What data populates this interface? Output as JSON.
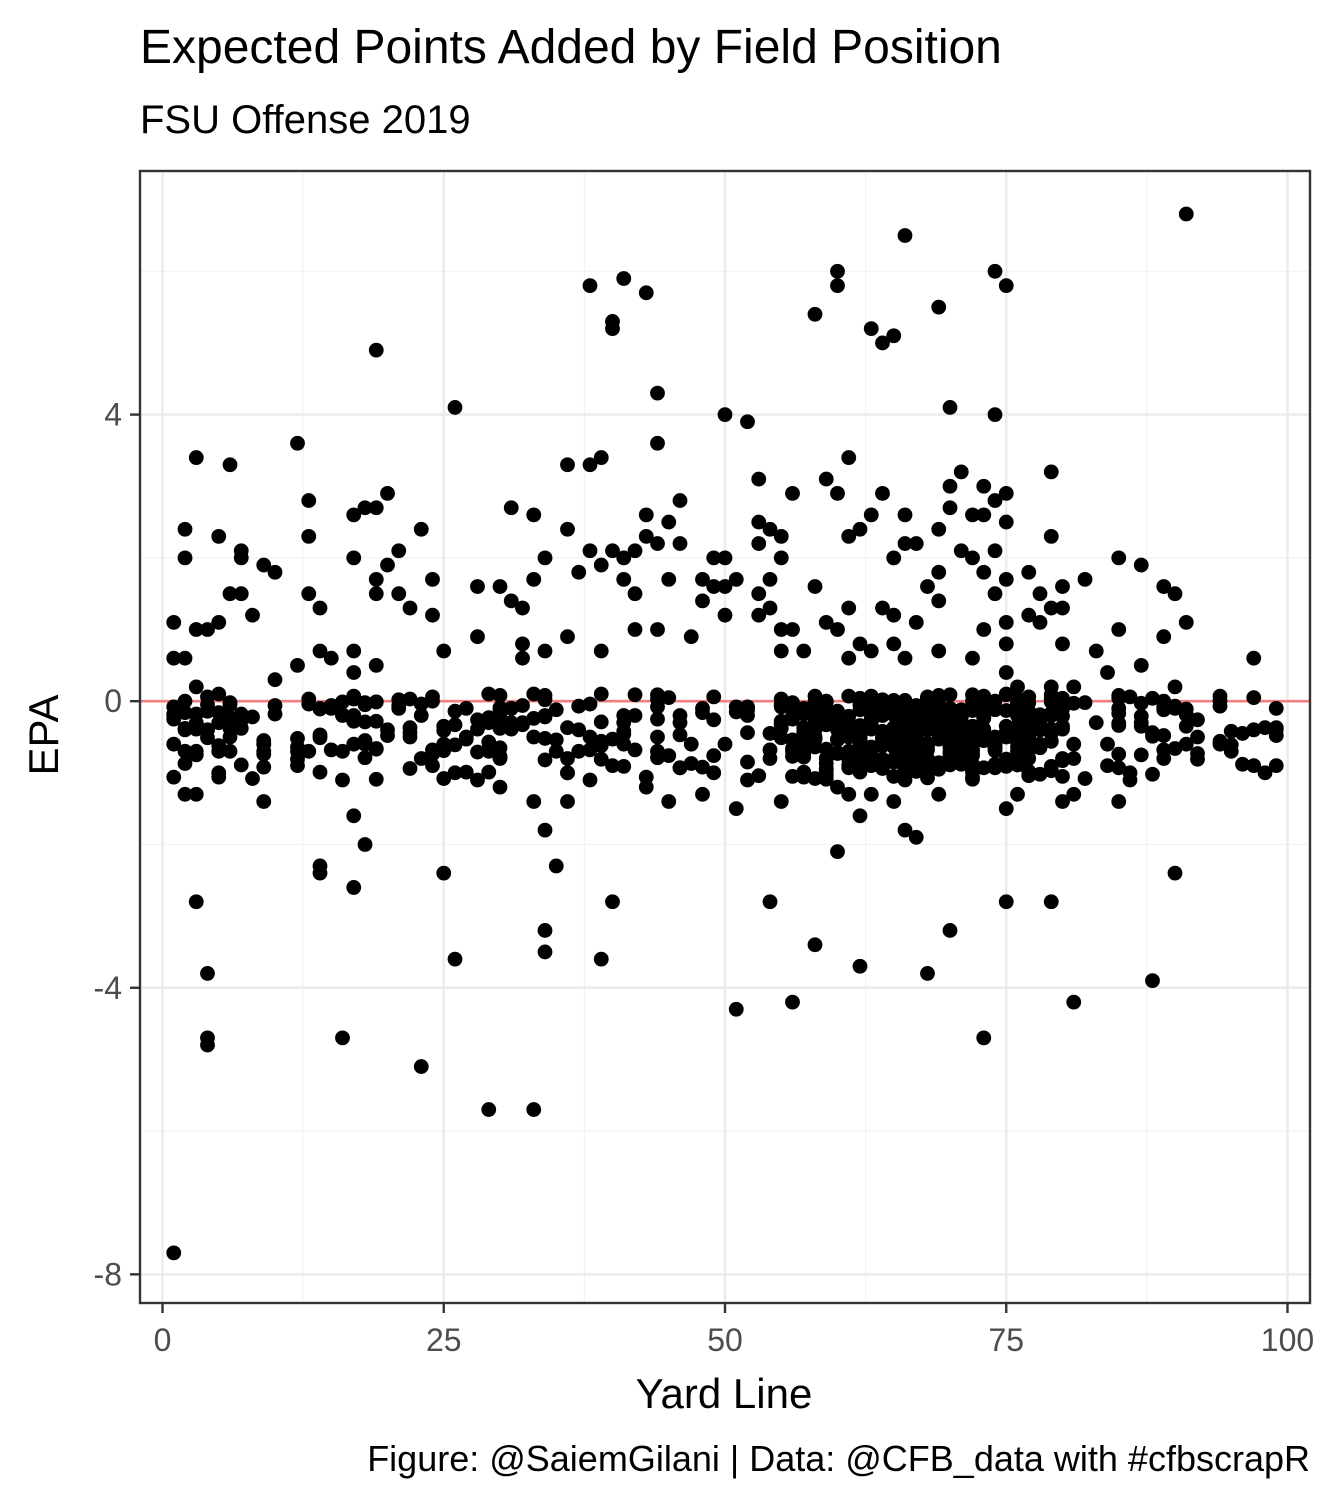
{
  "chart_data": {
    "type": "scatter",
    "title": "Expected Points Added by Field Position",
    "subtitle": "FSU Offense 2019",
    "xlabel": "Yard Line",
    "ylabel": "EPA",
    "caption": "Figure: @SaiemGilani | Data: @CFB_data with #cfbscrapR",
    "xlim": [
      -2,
      102
    ],
    "ylim": [
      -8.4,
      7.4
    ],
    "x_ticks": [
      0,
      25,
      50,
      75,
      100
    ],
    "y_ticks": [
      -8,
      -4,
      0,
      4
    ],
    "x_tick_labels": [
      "0",
      "25",
      "50",
      "75",
      "100"
    ],
    "y_tick_labels": [
      "-8",
      "-4",
      "0",
      "4"
    ],
    "grid": true,
    "reference_line": {
      "y": 0,
      "color": "#f08080"
    },
    "point_color": "#000000",
    "points": [
      [
        1,
        -7.7
      ],
      [
        1,
        1.1
      ],
      [
        1,
        0.6
      ],
      [
        1,
        -0.2
      ],
      [
        1,
        -0.6
      ],
      [
        2,
        2.4
      ],
      [
        2,
        2.0
      ],
      [
        2,
        0.6
      ],
      [
        2,
        0.0
      ],
      [
        2,
        -0.4
      ],
      [
        2,
        -0.7
      ],
      [
        2,
        -1.3
      ],
      [
        3,
        3.4
      ],
      [
        3,
        1.0
      ],
      [
        3,
        0.2
      ],
      [
        3,
        -0.7
      ],
      [
        3,
        -1.3
      ],
      [
        3,
        -2.8
      ],
      [
        4,
        -3.8
      ],
      [
        4,
        -4.7
      ],
      [
        4,
        -4.8
      ],
      [
        4,
        1.0
      ],
      [
        4,
        -0.4
      ],
      [
        5,
        2.3
      ],
      [
        5,
        1.1
      ],
      [
        5,
        0.1
      ],
      [
        5,
        -0.3
      ],
      [
        5,
        -0.7
      ],
      [
        5,
        -1.0
      ],
      [
        6,
        3.3
      ],
      [
        6,
        1.5
      ],
      [
        6,
        -0.5
      ],
      [
        6,
        -0.7
      ],
      [
        7,
        2.1
      ],
      [
        7,
        2.0
      ],
      [
        7,
        1.5
      ],
      [
        7,
        -0.2
      ],
      [
        8,
        1.2
      ],
      [
        9,
        1.9
      ],
      [
        9,
        -0.7
      ],
      [
        9,
        -1.4
      ],
      [
        10,
        1.8
      ],
      [
        10,
        0.3
      ],
      [
        12,
        3.6
      ],
      [
        12,
        0.5
      ],
      [
        12,
        -0.7
      ],
      [
        12,
        -0.9
      ],
      [
        13,
        2.8
      ],
      [
        13,
        2.3
      ],
      [
        13,
        1.5
      ],
      [
        13,
        -0.7
      ],
      [
        14,
        1.3
      ],
      [
        14,
        0.7
      ],
      [
        14,
        -0.1
      ],
      [
        14,
        -2.3
      ],
      [
        14,
        -2.4
      ],
      [
        15,
        0.6
      ],
      [
        15,
        -0.1
      ],
      [
        16,
        -0.2
      ],
      [
        16,
        -0.7
      ],
      [
        16,
        -1.1
      ],
      [
        16,
        -4.7
      ],
      [
        17,
        2.6
      ],
      [
        17,
        2.0
      ],
      [
        17,
        0.7
      ],
      [
        17,
        0.4
      ],
      [
        17,
        -0.6
      ],
      [
        17,
        -1.6
      ],
      [
        17,
        -2.6
      ],
      [
        18,
        2.7
      ],
      [
        18,
        -0.6
      ],
      [
        18,
        -2.0
      ],
      [
        19,
        4.9
      ],
      [
        19,
        2.7
      ],
      [
        19,
        1.7
      ],
      [
        19,
        1.5
      ],
      [
        19,
        0.5
      ],
      [
        20,
        2.9
      ],
      [
        20,
        1.9
      ],
      [
        20,
        -0.4
      ],
      [
        21,
        2.1
      ],
      [
        21,
        1.5
      ],
      [
        21,
        -0.1
      ],
      [
        22,
        1.3
      ],
      [
        22,
        -0.5
      ],
      [
        23,
        2.4
      ],
      [
        23,
        -0.2
      ],
      [
        23,
        -0.8
      ],
      [
        23,
        -5.1
      ],
      [
        24,
        1.7
      ],
      [
        24,
        1.2
      ],
      [
        24,
        0.0
      ],
      [
        24,
        -0.9
      ],
      [
        25,
        0.7
      ],
      [
        25,
        -0.6
      ],
      [
        25,
        -2.4
      ],
      [
        26,
        4.1
      ],
      [
        26,
        -1.0
      ],
      [
        26,
        -3.6
      ],
      [
        27,
        -0.1
      ],
      [
        27,
        -0.5
      ],
      [
        28,
        1.6
      ],
      [
        28,
        0.9
      ],
      [
        29,
        0.1
      ],
      [
        29,
        -0.3
      ],
      [
        29,
        -5.7
      ],
      [
        30,
        1.6
      ],
      [
        30,
        -1.2
      ],
      [
        31,
        2.7
      ],
      [
        31,
        1.4
      ],
      [
        31,
        -0.3
      ],
      [
        32,
        1.3
      ],
      [
        32,
        0.8
      ],
      [
        32,
        0.6
      ],
      [
        32,
        -0.3
      ],
      [
        33,
        2.6
      ],
      [
        33,
        1.7
      ],
      [
        33,
        0.1
      ],
      [
        33,
        -0.5
      ],
      [
        33,
        -1.4
      ],
      [
        33,
        -5.7
      ],
      [
        34,
        2.0
      ],
      [
        34,
        0.7
      ],
      [
        34,
        -0.2
      ],
      [
        34,
        -1.8
      ],
      [
        34,
        -3.2
      ],
      [
        34,
        -3.5
      ],
      [
        35,
        -0.7
      ],
      [
        35,
        -2.3
      ],
      [
        36,
        3.3
      ],
      [
        36,
        2.4
      ],
      [
        36,
        0.9
      ],
      [
        36,
        -1.0
      ],
      [
        36,
        -1.4
      ],
      [
        37,
        1.8
      ],
      [
        37,
        -0.4
      ],
      [
        38,
        5.8
      ],
      [
        38,
        3.3
      ],
      [
        38,
        2.1
      ],
      [
        38,
        -1.1
      ],
      [
        39,
        3.4
      ],
      [
        39,
        1.9
      ],
      [
        39,
        0.7
      ],
      [
        39,
        0.1
      ],
      [
        39,
        -3.6
      ],
      [
        40,
        5.3
      ],
      [
        40,
        5.2
      ],
      [
        40,
        2.1
      ],
      [
        40,
        -0.9
      ],
      [
        40,
        -2.8
      ],
      [
        41,
        5.9
      ],
      [
        41,
        2.0
      ],
      [
        41,
        1.7
      ],
      [
        41,
        -0.6
      ],
      [
        42,
        2.1
      ],
      [
        42,
        1.5
      ],
      [
        42,
        1.0
      ],
      [
        42,
        -0.2
      ],
      [
        43,
        5.7
      ],
      [
        43,
        2.6
      ],
      [
        43,
        2.3
      ],
      [
        43,
        -1.2
      ],
      [
        44,
        4.3
      ],
      [
        44,
        3.6
      ],
      [
        44,
        2.2
      ],
      [
        44,
        1.0
      ],
      [
        44,
        -0.5
      ],
      [
        45,
        2.5
      ],
      [
        45,
        1.7
      ],
      [
        45,
        -1.4
      ],
      [
        46,
        2.8
      ],
      [
        46,
        2.2
      ],
      [
        46,
        -0.2
      ],
      [
        47,
        0.9
      ],
      [
        47,
        -0.6
      ],
      [
        48,
        1.7
      ],
      [
        48,
        1.4
      ],
      [
        48,
        -1.3
      ],
      [
        49,
        2.0
      ],
      [
        49,
        1.6
      ],
      [
        49,
        -1.0
      ],
      [
        50,
        4.0
      ],
      [
        50,
        2.0
      ],
      [
        50,
        1.6
      ],
      [
        50,
        1.2
      ],
      [
        50,
        -0.6
      ],
      [
        51,
        1.7
      ],
      [
        51,
        -1.5
      ],
      [
        51,
        -4.3
      ],
      [
        52,
        3.9
      ],
      [
        52,
        -0.2
      ],
      [
        52,
        -1.1
      ],
      [
        53,
        3.1
      ],
      [
        53,
        2.5
      ],
      [
        53,
        2.2
      ],
      [
        53,
        1.5
      ],
      [
        53,
        1.2
      ],
      [
        54,
        2.4
      ],
      [
        54,
        1.7
      ],
      [
        54,
        1.3
      ],
      [
        54,
        -0.8
      ],
      [
        54,
        -2.8
      ],
      [
        55,
        2.3
      ],
      [
        55,
        2.0
      ],
      [
        55,
        1.0
      ],
      [
        55,
        0.7
      ],
      [
        55,
        -1.4
      ],
      [
        56,
        2.9
      ],
      [
        56,
        1.0
      ],
      [
        56,
        -0.7
      ],
      [
        56,
        -4.2
      ],
      [
        57,
        0.7
      ],
      [
        58,
        5.4
      ],
      [
        58,
        1.6
      ],
      [
        58,
        -0.5
      ],
      [
        58,
        -3.4
      ],
      [
        59,
        3.1
      ],
      [
        59,
        1.1
      ],
      [
        59,
        -0.1
      ],
      [
        59,
        -0.8
      ],
      [
        60,
        6.0
      ],
      [
        60,
        5.8
      ],
      [
        60,
        2.9
      ],
      [
        60,
        1.0
      ],
      [
        60,
        -1.2
      ],
      [
        60,
        -2.1
      ],
      [
        61,
        3.4
      ],
      [
        61,
        2.3
      ],
      [
        61,
        1.3
      ],
      [
        61,
        0.6
      ],
      [
        61,
        -0.7
      ],
      [
        61,
        -1.3
      ],
      [
        62,
        2.4
      ],
      [
        62,
        0.8
      ],
      [
        62,
        -0.4
      ],
      [
        62,
        -1.6
      ],
      [
        62,
        -3.7
      ],
      [
        63,
        5.2
      ],
      [
        63,
        2.6
      ],
      [
        63,
        0.7
      ],
      [
        63,
        -0.9
      ],
      [
        63,
        -1.3
      ],
      [
        64,
        5.0
      ],
      [
        64,
        2.9
      ],
      [
        64,
        1.3
      ],
      [
        64,
        -0.2
      ],
      [
        65,
        5.1
      ],
      [
        65,
        2.0
      ],
      [
        65,
        1.2
      ],
      [
        65,
        0.8
      ],
      [
        65,
        -1.4
      ],
      [
        66,
        6.5
      ],
      [
        66,
        2.6
      ],
      [
        66,
        2.2
      ],
      [
        66,
        0.6
      ],
      [
        66,
        -1.8
      ],
      [
        67,
        2.2
      ],
      [
        67,
        1.1
      ],
      [
        67,
        -1.9
      ],
      [
        68,
        1.6
      ],
      [
        68,
        0.0
      ],
      [
        68,
        -3.8
      ],
      [
        69,
        5.5
      ],
      [
        69,
        2.4
      ],
      [
        69,
        1.8
      ],
      [
        69,
        1.4
      ],
      [
        69,
        0.7
      ],
      [
        69,
        -1.3
      ],
      [
        70,
        4.1
      ],
      [
        70,
        3.0
      ],
      [
        70,
        2.7
      ],
      [
        70,
        -0.4
      ],
      [
        70,
        -3.2
      ],
      [
        71,
        3.2
      ],
      [
        71,
        2.1
      ],
      [
        71,
        -0.2
      ],
      [
        72,
        2.6
      ],
      [
        72,
        2.0
      ],
      [
        72,
        0.6
      ],
      [
        73,
        3.0
      ],
      [
        73,
        2.6
      ],
      [
        73,
        1.8
      ],
      [
        73,
        1.0
      ],
      [
        73,
        -4.7
      ],
      [
        74,
        6.0
      ],
      [
        74,
        4.0
      ],
      [
        74,
        2.8
      ],
      [
        74,
        2.1
      ],
      [
        74,
        1.5
      ],
      [
        74,
        0.0
      ],
      [
        75,
        5.8
      ],
      [
        75,
        2.9
      ],
      [
        75,
        2.5
      ],
      [
        75,
        1.7
      ],
      [
        75,
        1.1
      ],
      [
        75,
        0.8
      ],
      [
        75,
        0.4
      ],
      [
        75,
        0.1
      ],
      [
        75,
        -1.5
      ],
      [
        75,
        -2.8
      ],
      [
        76,
        0.2
      ],
      [
        76,
        -1.3
      ],
      [
        77,
        1.8
      ],
      [
        77,
        1.2
      ],
      [
        78,
        1.5
      ],
      [
        78,
        1.1
      ],
      [
        78,
        -0.4
      ],
      [
        79,
        3.2
      ],
      [
        79,
        2.3
      ],
      [
        79,
        1.3
      ],
      [
        79,
        0.2
      ],
      [
        79,
        -2.8
      ],
      [
        80,
        1.6
      ],
      [
        80,
        1.3
      ],
      [
        80,
        0.8
      ],
      [
        80,
        -1.4
      ],
      [
        81,
        0.2
      ],
      [
        81,
        -0.6
      ],
      [
        81,
        -1.3
      ],
      [
        81,
        -4.2
      ],
      [
        82,
        1.7
      ],
      [
        83,
        0.7
      ],
      [
        83,
        -0.3
      ],
      [
        84,
        0.4
      ],
      [
        84,
        -0.6
      ],
      [
        85,
        2.0
      ],
      [
        85,
        1.0
      ],
      [
        85,
        -0.1
      ],
      [
        85,
        -1.4
      ],
      [
        86,
        -1.0
      ],
      [
        87,
        1.9
      ],
      [
        87,
        0.5
      ],
      [
        87,
        -0.3
      ],
      [
        88,
        -3.9
      ],
      [
        89,
        1.6
      ],
      [
        89,
        0.9
      ],
      [
        89,
        -0.8
      ],
      [
        90,
        1.5
      ],
      [
        90,
        0.2
      ],
      [
        90,
        -0.1
      ],
      [
        90,
        -2.4
      ],
      [
        91,
        6.8
      ],
      [
        91,
        1.1
      ],
      [
        91,
        -0.6
      ],
      [
        92,
        -0.5
      ],
      [
        94,
        -0.6
      ],
      [
        95,
        -0.7
      ],
      [
        97,
        0.6
      ],
      [
        97,
        -0.4
      ],
      [
        97,
        -0.9
      ],
      [
        98,
        -1.0
      ],
      [
        99,
        -0.1
      ],
      [
        99,
        -0.4
      ],
      [
        99,
        -0.9
      ]
    ],
    "dense_band": {
      "x_range": [
        1,
        99
      ],
      "y_range": [
        -1.1,
        0.1
      ],
      "count": 560,
      "density_peak_x": [
        55,
        80
      ]
    }
  }
}
